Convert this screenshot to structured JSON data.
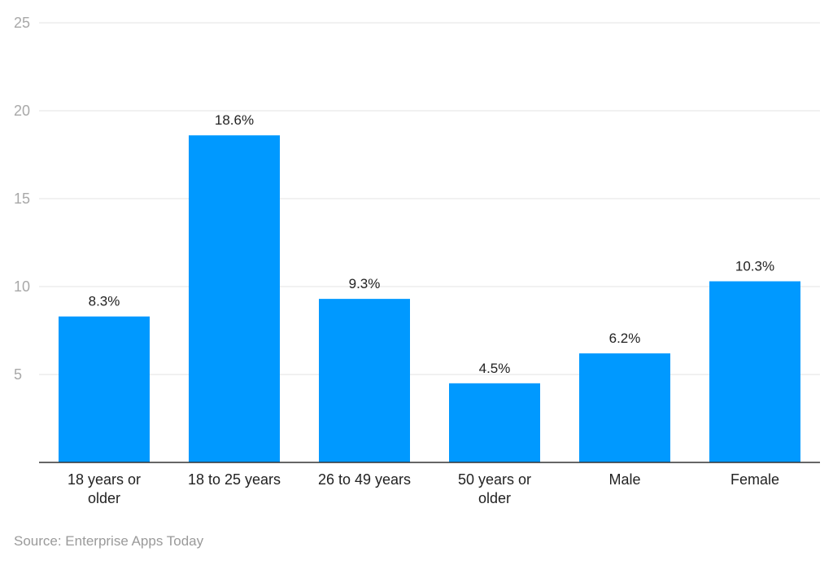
{
  "chart_data": {
    "type": "bar",
    "categories": [
      [
        "18 years or",
        "older"
      ],
      [
        "18 to 25 years"
      ],
      [
        "26 to 49 years"
      ],
      [
        "50 years or",
        "older"
      ],
      [
        "Male"
      ],
      [
        "Female"
      ]
    ],
    "values": [
      8.3,
      18.6,
      9.3,
      4.5,
      6.2,
      10.3
    ],
    "data_labels": [
      "8.3%",
      "18.6%",
      "9.3%",
      "4.5%",
      "6.2%",
      "10.3%"
    ],
    "ylim": [
      0,
      25
    ],
    "yticks": [
      5,
      10,
      15,
      20,
      25
    ],
    "grid": true,
    "bar_color": "#0099ff"
  },
  "source": "Source: Enterprise Apps Today"
}
